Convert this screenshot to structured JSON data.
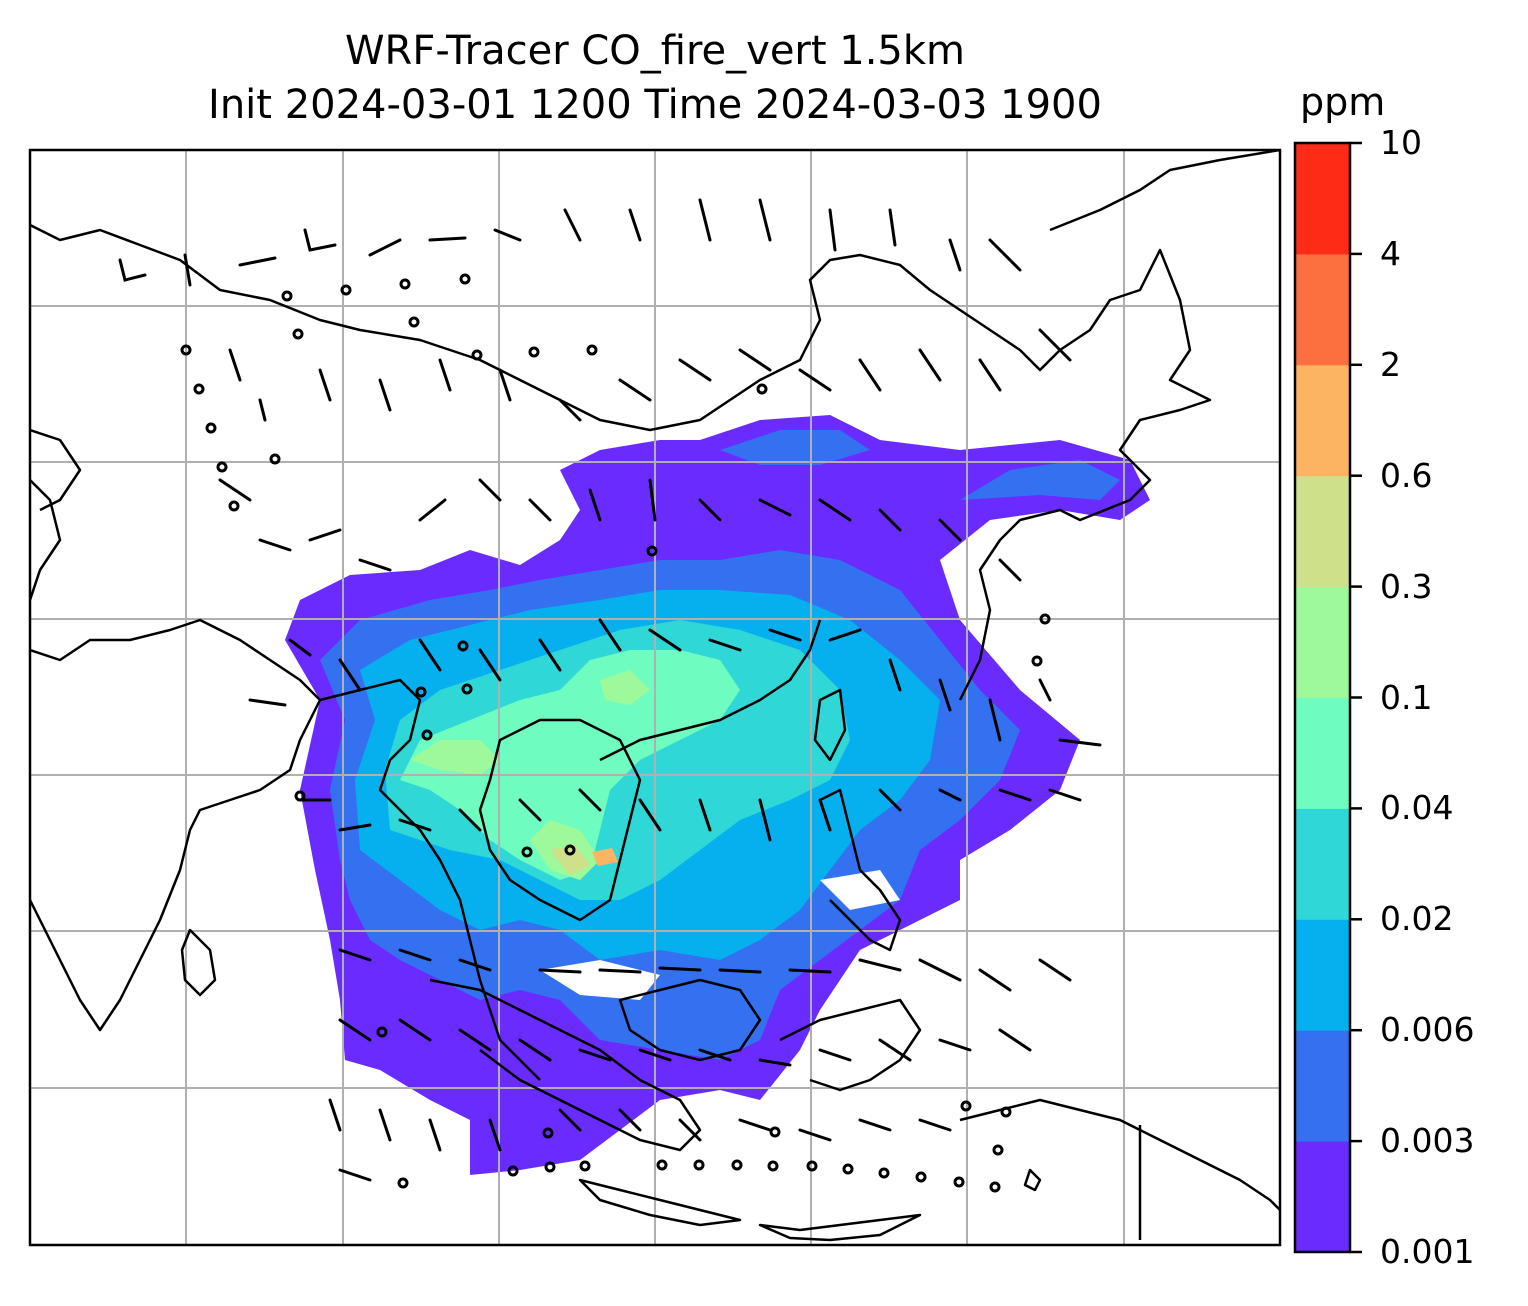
{
  "title": {
    "line1": "WRF-Tracer CO_fire_vert 1.5km",
    "line2": "Init 2024-03-01 1200 Time 2024-03-03 1900"
  },
  "colorbar": {
    "unit": "ppm",
    "levels": [
      "0.001",
      "0.003",
      "0.006",
      "0.02",
      "0.04",
      "0.1",
      "0.3",
      "0.6",
      "2",
      "4",
      "10"
    ],
    "colors": [
      "#6a2bff",
      "#3471f0",
      "#06b0ee",
      "#2fd8d6",
      "#6efcc0",
      "#9ef99a",
      "#cfe08a",
      "#fdb462",
      "#fc7040",
      "#fe2b16"
    ]
  },
  "map": {
    "gridlines": true,
    "coastline_color": "#000000",
    "grid_color": "#b0b0b0"
  }
}
